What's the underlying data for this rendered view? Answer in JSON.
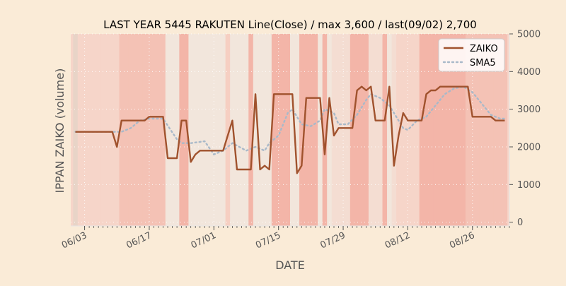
{
  "chart_data": {
    "type": "line",
    "title": "LAST YEAR 5445 RAKUTEN Line(Close) / max 3,600 / last(09/02) 2,700",
    "xlabel": "DATE",
    "ylabel": "IPPAN ZAIKO (volume)",
    "ylim": [
      -100,
      5000
    ],
    "yticks": [
      0,
      1000,
      2000,
      3000,
      4000,
      5000
    ],
    "y_axis_side": "right",
    "xlim": [
      "2023-05-31",
      "2023-09-03"
    ],
    "xticks": [
      "2023-06-03",
      "2023-06-17",
      "2023-07-01",
      "2023-07-15",
      "2023-07-29",
      "2023-08-12",
      "2023-08-26"
    ],
    "xtick_labels": [
      "06/03",
      "06/17",
      "07/01",
      "07/15",
      "07/29",
      "08/12",
      "08/26"
    ],
    "grid": true,
    "legend_position": "top-right",
    "series": [
      {
        "name": "ZAIKO",
        "color": "#a0522d",
        "style": "solid",
        "points": [
          [
            "2023-06-01",
            2400
          ],
          [
            "2023-06-02",
            2400
          ],
          [
            "2023-06-03",
            2400
          ],
          [
            "2023-06-04",
            2400
          ],
          [
            "2023-06-05",
            2400
          ],
          [
            "2023-06-06",
            2400
          ],
          [
            "2023-06-07",
            2400
          ],
          [
            "2023-06-08",
            2400
          ],
          [
            "2023-06-09",
            2400
          ],
          [
            "2023-06-10",
            2000
          ],
          [
            "2023-06-11",
            2700
          ],
          [
            "2023-06-12",
            2700
          ],
          [
            "2023-06-13",
            2700
          ],
          [
            "2023-06-14",
            2700
          ],
          [
            "2023-06-15",
            2700
          ],
          [
            "2023-06-16",
            2700
          ],
          [
            "2023-06-17",
            2800
          ],
          [
            "2023-06-18",
            2800
          ],
          [
            "2023-06-19",
            2800
          ],
          [
            "2023-06-20",
            2800
          ],
          [
            "2023-06-21",
            1700
          ],
          [
            "2023-06-22",
            1700
          ],
          [
            "2023-06-23",
            1700
          ],
          [
            "2023-06-24",
            2700
          ],
          [
            "2023-06-25",
            2700
          ],
          [
            "2023-06-26",
            1600
          ],
          [
            "2023-06-27",
            1800
          ],
          [
            "2023-06-28",
            1900
          ],
          [
            "2023-06-29",
            1900
          ],
          [
            "2023-06-30",
            1900
          ],
          [
            "2023-07-01",
            1900
          ],
          [
            "2023-07-02",
            1900
          ],
          [
            "2023-07-03",
            1900
          ],
          [
            "2023-07-05",
            2700
          ],
          [
            "2023-07-06",
            1400
          ],
          [
            "2023-07-07",
            1400
          ],
          [
            "2023-07-08",
            1400
          ],
          [
            "2023-07-09",
            1400
          ],
          [
            "2023-07-10",
            3400
          ],
          [
            "2023-07-11",
            1400
          ],
          [
            "2023-07-12",
            1500
          ],
          [
            "2023-07-13",
            1400
          ],
          [
            "2023-07-14",
            3400
          ],
          [
            "2023-07-15",
            3400
          ],
          [
            "2023-07-16",
            3400
          ],
          [
            "2023-07-17",
            3400
          ],
          [
            "2023-07-18",
            3400
          ],
          [
            "2023-07-19",
            1300
          ],
          [
            "2023-07-20",
            1500
          ],
          [
            "2023-07-21",
            3300
          ],
          [
            "2023-07-22",
            3300
          ],
          [
            "2023-07-23",
            3300
          ],
          [
            "2023-07-24",
            3300
          ],
          [
            "2023-07-25",
            1800
          ],
          [
            "2023-07-26",
            3300
          ],
          [
            "2023-07-27",
            2300
          ],
          [
            "2023-07-28",
            2500
          ],
          [
            "2023-07-29",
            2500
          ],
          [
            "2023-07-30",
            2500
          ],
          [
            "2023-07-31",
            2500
          ],
          [
            "2023-08-01",
            3500
          ],
          [
            "2023-08-02",
            3600
          ],
          [
            "2023-08-03",
            3500
          ],
          [
            "2023-08-04",
            3600
          ],
          [
            "2023-08-05",
            2700
          ],
          [
            "2023-08-06",
            2700
          ],
          [
            "2023-08-07",
            2700
          ],
          [
            "2023-08-08",
            3600
          ],
          [
            "2023-08-09",
            1500
          ],
          [
            "2023-08-10",
            2300
          ],
          [
            "2023-08-11",
            2900
          ],
          [
            "2023-08-12",
            2700
          ],
          [
            "2023-08-13",
            2700
          ],
          [
            "2023-08-14",
            2700
          ],
          [
            "2023-08-15",
            2700
          ],
          [
            "2023-08-16",
            3400
          ],
          [
            "2023-08-17",
            3500
          ],
          [
            "2023-08-18",
            3500
          ],
          [
            "2023-08-19",
            3600
          ],
          [
            "2023-08-20",
            3600
          ],
          [
            "2023-08-21",
            3600
          ],
          [
            "2023-08-22",
            3600
          ],
          [
            "2023-08-23",
            3600
          ],
          [
            "2023-08-24",
            3600
          ],
          [
            "2023-08-25",
            3600
          ],
          [
            "2023-08-26",
            2800
          ],
          [
            "2023-08-27",
            2800
          ],
          [
            "2023-08-28",
            2800
          ],
          [
            "2023-08-29",
            2800
          ],
          [
            "2023-08-30",
            2800
          ],
          [
            "2023-08-31",
            2700
          ],
          [
            "2023-09-01",
            2700
          ],
          [
            "2023-09-02",
            2700
          ]
        ]
      },
      {
        "name": "SMA5",
        "color": "#a9b9c9",
        "style": "dotted",
        "points": [
          [
            "2023-06-01",
            2400
          ],
          [
            "2023-06-03",
            2400
          ],
          [
            "2023-06-07",
            2400
          ],
          [
            "2023-06-09",
            2400
          ],
          [
            "2023-06-11",
            2400
          ],
          [
            "2023-06-13",
            2500
          ],
          [
            "2023-06-15",
            2700
          ],
          [
            "2023-06-17",
            2750
          ],
          [
            "2023-06-20",
            2750
          ],
          [
            "2023-06-23",
            2200
          ],
          [
            "2023-06-24",
            2100
          ],
          [
            "2023-06-26",
            2100
          ],
          [
            "2023-06-29",
            2150
          ],
          [
            "2023-07-01",
            1800
          ],
          [
            "2023-07-03",
            1900
          ],
          [
            "2023-07-05",
            2100
          ],
          [
            "2023-07-08",
            1900
          ],
          [
            "2023-07-10",
            2000
          ],
          [
            "2023-07-12",
            1900
          ],
          [
            "2023-07-13",
            2100
          ],
          [
            "2023-07-15",
            2300
          ],
          [
            "2023-07-17",
            2900
          ],
          [
            "2023-07-18",
            3000
          ],
          [
            "2023-07-20",
            2600
          ],
          [
            "2023-07-22",
            2550
          ],
          [
            "2023-07-24",
            2700
          ],
          [
            "2023-07-25",
            3000
          ],
          [
            "2023-07-27",
            2900
          ],
          [
            "2023-07-28",
            2600
          ],
          [
            "2023-07-30",
            2600
          ],
          [
            "2023-08-01",
            2850
          ],
          [
            "2023-08-03",
            3250
          ],
          [
            "2023-08-04",
            3400
          ],
          [
            "2023-08-06",
            3300
          ],
          [
            "2023-08-08",
            3100
          ],
          [
            "2023-08-09",
            2900
          ],
          [
            "2023-08-11",
            2500
          ],
          [
            "2023-08-12",
            2450
          ],
          [
            "2023-08-14",
            2700
          ],
          [
            "2023-08-16",
            2800
          ],
          [
            "2023-08-18",
            3100
          ],
          [
            "2023-08-20",
            3400
          ],
          [
            "2023-08-22",
            3550
          ],
          [
            "2023-08-24",
            3600
          ],
          [
            "2023-08-26",
            3450
          ],
          [
            "2023-08-28",
            3150
          ],
          [
            "2023-08-30",
            2850
          ],
          [
            "2023-09-01",
            2750
          ],
          [
            "2023-09-02",
            2750
          ]
        ]
      }
    ],
    "background_bands": {
      "stripe_width_days": 1,
      "colors": [
        "#e8d4c7",
        "#f6d5c9",
        "#f4c2b5",
        "#f7e3d8",
        "#f2e6dc",
        "#f3b5a8",
        "#f6cfc2",
        "#f4ddd2"
      ],
      "days": [
        0,
        1,
        1,
        1,
        1,
        1,
        1,
        1,
        1,
        1,
        2,
        2,
        2,
        2,
        2,
        2,
        2,
        2,
        2,
        2,
        4,
        4,
        4,
        5,
        5,
        4,
        4,
        4,
        4,
        4,
        4,
        4,
        4,
        6,
        4,
        4,
        4,
        4,
        5,
        4,
        4,
        4,
        4,
        5,
        5,
        5,
        5,
        4,
        4,
        5,
        5,
        5,
        5,
        4,
        5,
        4,
        7,
        7,
        7,
        7,
        5,
        5,
        5,
        5,
        7,
        7,
        7,
        5,
        4,
        7,
        1,
        1,
        1,
        1,
        1,
        5,
        5,
        5,
        5,
        5,
        5,
        5,
        5,
        5,
        5,
        2,
        2,
        2,
        2,
        2,
        2,
        2,
        2,
        2
      ]
    }
  }
}
